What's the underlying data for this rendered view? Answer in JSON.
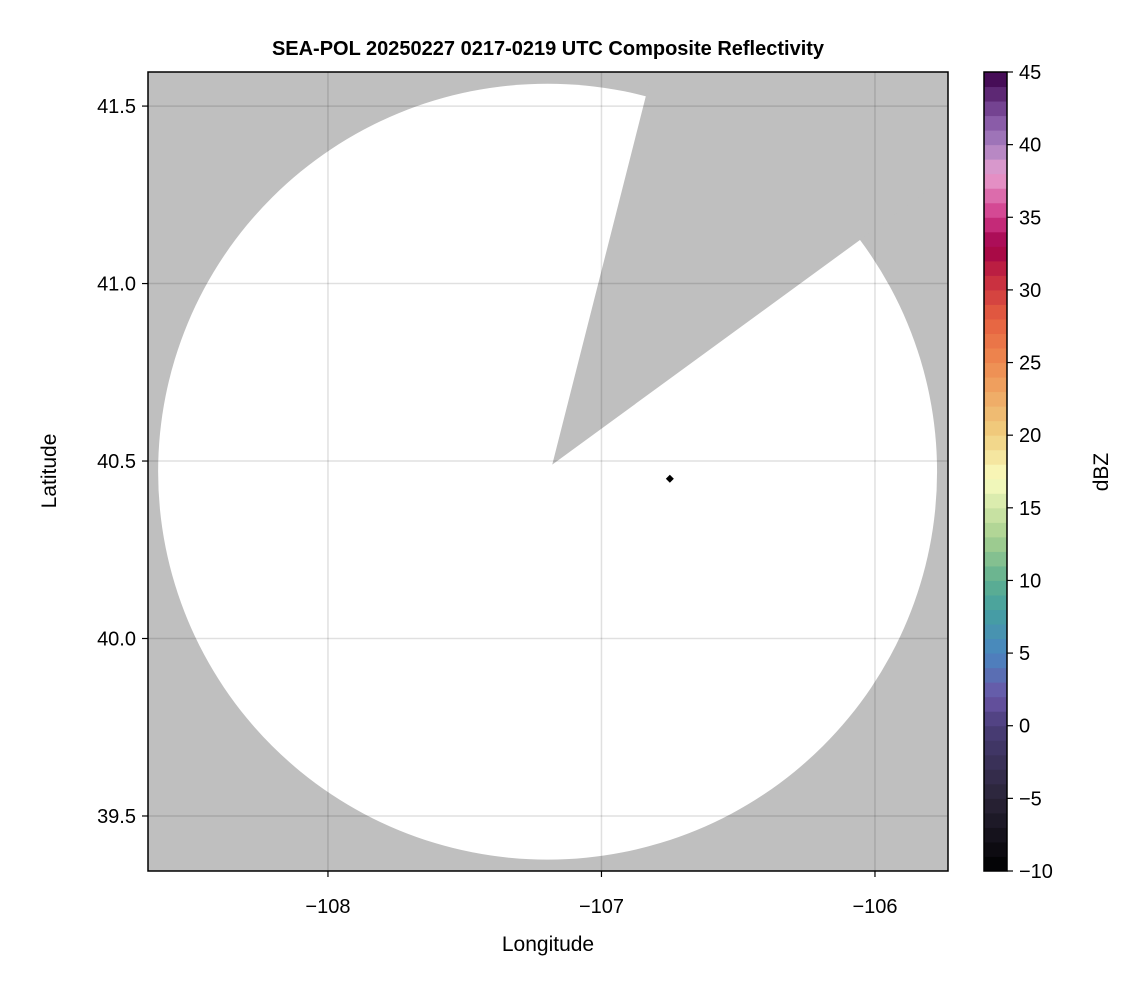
{
  "chart_data": {
    "type": "heatmap",
    "title": "SEA-POL 20250227 0217-0219 UTC Composite Reflectivity",
    "xlabel": "Longitude",
    "ylabel": "Latitude",
    "xlim": [
      -108.658,
      -105.733
    ],
    "ylim": [
      39.345,
      41.596
    ],
    "xticks": [
      -108,
      -107,
      -106
    ],
    "xtick_labels": [
      "−108",
      "−107",
      "−106"
    ],
    "yticks": [
      39.5,
      40.0,
      40.5,
      41.0,
      41.5
    ],
    "ytick_labels": [
      "39.5",
      "40.0",
      "40.5",
      "41.0",
      "41.5"
    ],
    "grid": true,
    "missing_color": "#bfbfbf",
    "coverage_disk": {
      "center_lon": -107.197,
      "center_lat": 40.47,
      "radius_lon": 1.424,
      "radius_lat": 1.093,
      "color": "#ffffff"
    },
    "blocked_sector": {
      "apex": [
        -107.18,
        40.49
      ],
      "ray1_end": [
        -106.841,
        41.518
      ],
      "ray2_end": [
        -106.058,
        41.121
      ]
    },
    "marker": {
      "lon": -106.75,
      "lat": 40.45,
      "shape": "diamond",
      "color": "#000000"
    },
    "reflectivity_values": "none (no echoes in coverage area)",
    "colorbar": {
      "label": "dBZ",
      "range": [
        -10,
        45
      ],
      "step": 1,
      "ticks": [
        -10,
        -5,
        0,
        5,
        10,
        15,
        20,
        25,
        30,
        35,
        40,
        45
      ],
      "tick_labels": [
        "−10",
        "−5",
        "0",
        "5",
        "10",
        "15",
        "20",
        "25",
        "30",
        "35",
        "40",
        "45"
      ],
      "color_stops": [
        [
          -10,
          "#000000"
        ],
        [
          -5,
          "#2a2438"
        ],
        [
          0,
          "#4a3d78"
        ],
        [
          2,
          "#6a55a6"
        ],
        [
          5,
          "#4a86c0"
        ],
        [
          8,
          "#45a0a0"
        ],
        [
          10,
          "#60b090"
        ],
        [
          13,
          "#a8d090"
        ],
        [
          17,
          "#fafcc0"
        ],
        [
          20,
          "#f0d080"
        ],
        [
          25,
          "#ee8a50"
        ],
        [
          28,
          "#e66040"
        ],
        [
          31,
          "#c42840"
        ],
        [
          33,
          "#a00048"
        ],
        [
          35,
          "#d03888"
        ],
        [
          38,
          "#e8a0d0"
        ],
        [
          40,
          "#a880c0"
        ],
        [
          42,
          "#8050a0"
        ],
        [
          45,
          "#3a0048"
        ]
      ]
    }
  }
}
